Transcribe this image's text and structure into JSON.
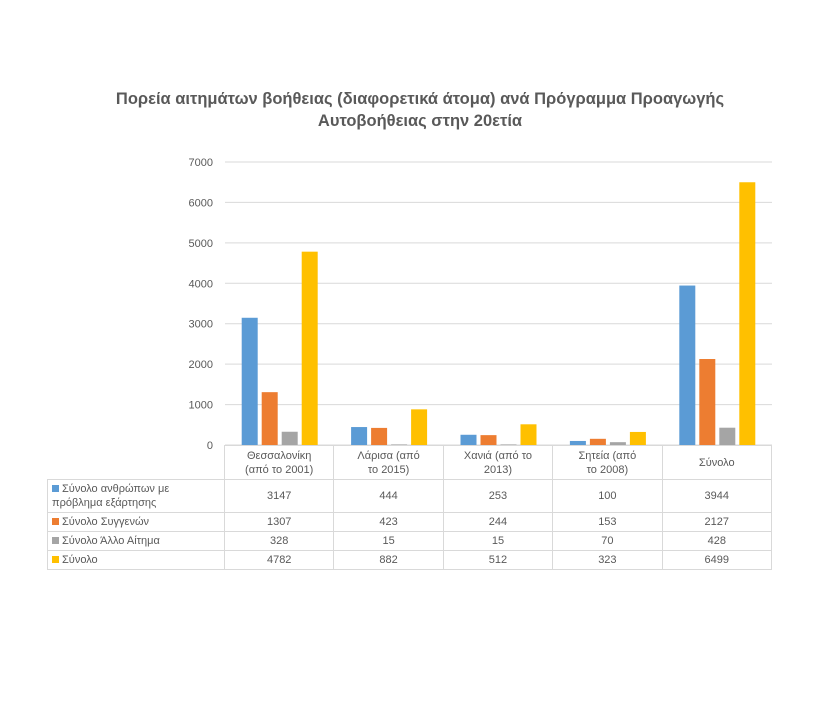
{
  "chart_data": {
    "type": "bar",
    "title": "Πορεία αιτημάτων βοήθειας (διαφορετικά άτομα) ανά Πρόγραμμα Προαγωγής Αυτοβοήθειας στην 20ετία",
    "categories": [
      "Θεσσαλονίκη\n(από το 2001)",
      "Λάρισα (από\nτο 2015)",
      "Χανιά (από το\n2013)",
      "Σητεία (από\nτο 2008)",
      "Σύνολο"
    ],
    "series": [
      {
        "name": "Σύνολο ανθρώπων με πρόβλημα εξάρτησης",
        "values": [
          3147,
          444,
          253,
          100,
          3944
        ],
        "color": "#5b9bd5"
      },
      {
        "name": "Σύνολο Συγγενών",
        "values": [
          1307,
          423,
          244,
          153,
          2127
        ],
        "color": "#ed7d31"
      },
      {
        "name": "Σύνολο Άλλο Αίτημα",
        "values": [
          328,
          15,
          15,
          70,
          428
        ],
        "color": "#a5a5a5"
      },
      {
        "name": "Σύνολο",
        "values": [
          4782,
          882,
          512,
          323,
          6499
        ],
        "color": "#ffc000"
      }
    ],
    "yticks": [
      "0",
      "1000",
      "2000",
      "3000",
      "4000",
      "5000",
      "6000",
      "7000"
    ],
    "ylim": [
      0,
      7000
    ],
    "grid": true,
    "legend": "data-table"
  }
}
